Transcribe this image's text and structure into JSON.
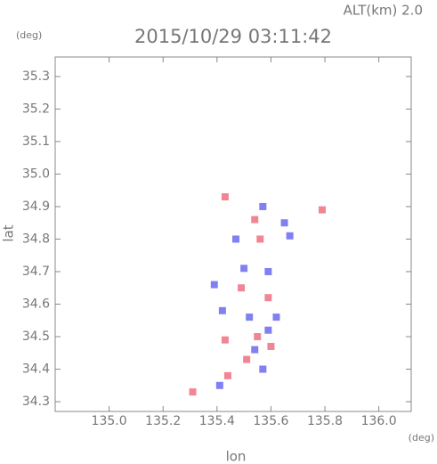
{
  "chart_data": {
    "type": "scatter",
    "title": "2015/10/29 03:11:42",
    "subtitle": "ALT(km) 2.0",
    "ylabel": "lat",
    "yunit": "(deg)",
    "xlabel": "lon",
    "xunit": "(deg)",
    "xlim": [
      134.8,
      136.12
    ],
    "ylim": [
      34.27,
      35.36
    ],
    "xticks": [
      {
        "value": 135.0,
        "label": "135.0"
      },
      135.2,
      135.4,
      135.6,
      135.8,
      {
        "value": 136.0,
        "label": "136.0"
      }
    ],
    "yticks": [
      34.3,
      34.4,
      34.5,
      34.6,
      34.7,
      34.8,
      34.9,
      {
        "value": 35.0,
        "label": "35.0"
      },
      35.1,
      35.2,
      35.3
    ],
    "series": [
      {
        "color": "#f07080",
        "x": [
          135.31,
          135.44,
          135.43,
          135.55,
          135.6,
          135.49,
          135.59,
          135.56,
          135.43,
          135.79,
          135.54,
          135.51
        ],
        "values": [
          34.33,
          34.38,
          34.49,
          34.5,
          34.47,
          34.65,
          34.62,
          34.8,
          34.93,
          34.89,
          34.86,
          34.43
        ]
      },
      {
        "color": "#6a6aee",
        "x": [
          135.41,
          135.57,
          135.59,
          135.52,
          135.42,
          135.62,
          135.5,
          135.57,
          135.67,
          135.65,
          135.47,
          135.54,
          135.39,
          135.59
        ],
        "values": [
          34.35,
          34.4,
          34.52,
          34.56,
          34.58,
          34.56,
          34.71,
          34.9,
          34.81,
          34.85,
          34.8,
          34.46,
          34.66,
          34.7
        ]
      }
    ]
  }
}
